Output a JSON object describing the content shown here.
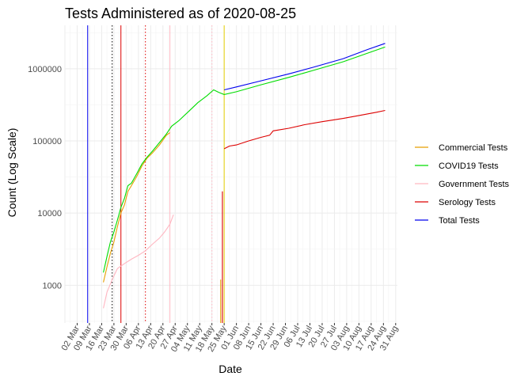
{
  "chart_data": {
    "type": "line",
    "title": "Tests Administered as of 2020-08-25",
    "xlabel": "Date",
    "ylabel": "Count (Log Scale)",
    "y_scale": "log10",
    "ylim": [
      300,
      4000000
    ],
    "xlim": [
      "2020-02-24",
      "2020-09-01"
    ],
    "grid": true,
    "legend_position": "right",
    "x_tick_labels": [
      "02 Mar",
      "09 Mar",
      "16 Mar",
      "23 Mar",
      "30 Mar",
      "06 Apr",
      "13 Apr",
      "20 Apr",
      "27 Apr",
      "04 May",
      "11 May",
      "18 May",
      "25 May",
      "01 Jun",
      "08 Jun",
      "15 Jun",
      "22 Jun",
      "29 Jun",
      "06 Jul",
      "13 Jul",
      "20 Jul",
      "27 Jul",
      "03 Aug",
      "10 Aug",
      "17 Aug",
      "24 Aug",
      "31 Aug"
    ],
    "x_tick_dates": [
      "2020-03-02",
      "2020-03-09",
      "2020-03-16",
      "2020-03-23",
      "2020-03-30",
      "2020-04-06",
      "2020-04-13",
      "2020-04-20",
      "2020-04-27",
      "2020-05-04",
      "2020-05-11",
      "2020-05-18",
      "2020-05-25",
      "2020-06-01",
      "2020-06-08",
      "2020-06-15",
      "2020-06-22",
      "2020-06-29",
      "2020-07-06",
      "2020-07-13",
      "2020-07-20",
      "2020-07-27",
      "2020-08-03",
      "2020-08-10",
      "2020-08-17",
      "2020-08-24",
      "2020-08-31"
    ],
    "y_ticks": [
      1000,
      10000,
      100000,
      1000000
    ],
    "y_tick_labels": [
      "1000",
      "10000",
      "100000",
      "1000000"
    ],
    "series": [
      {
        "name": "Commercial Tests",
        "color": "#E69F00",
        "points": [
          [
            "2020-03-17",
            1100
          ],
          [
            "2020-03-19",
            1800
          ],
          [
            "2020-03-21",
            2800
          ],
          [
            "2020-03-23",
            4000
          ],
          [
            "2020-03-25",
            6500
          ],
          [
            "2020-03-27",
            10000
          ],
          [
            "2020-03-29",
            13000
          ],
          [
            "2020-03-31",
            20000
          ],
          [
            "2020-04-02",
            24000
          ],
          [
            "2020-04-05",
            32000
          ],
          [
            "2020-04-08",
            45000
          ],
          [
            "2020-04-11",
            58000
          ],
          [
            "2020-04-14",
            68000
          ],
          [
            "2020-04-18",
            88000
          ],
          [
            "2020-04-22",
            120000
          ],
          [
            "2020-04-24",
            130000
          ]
        ]
      },
      {
        "name": "COVID19 Tests",
        "color": "#00DD00",
        "points": [
          [
            "2020-03-17",
            1500
          ],
          [
            "2020-03-19",
            2500
          ],
          [
            "2020-03-21",
            4000
          ],
          [
            "2020-03-23",
            5500
          ],
          [
            "2020-03-25",
            8000
          ],
          [
            "2020-03-27",
            12000
          ],
          [
            "2020-03-29",
            16000
          ],
          [
            "2020-03-31",
            24000
          ],
          [
            "2020-04-02",
            26000
          ],
          [
            "2020-04-05",
            35000
          ],
          [
            "2020-04-08",
            48000
          ],
          [
            "2020-04-11",
            60000
          ],
          [
            "2020-04-14",
            72000
          ],
          [
            "2020-04-18",
            95000
          ],
          [
            "2020-04-22",
            125000
          ],
          [
            "2020-04-25",
            160000
          ],
          [
            "2020-04-29",
            190000
          ],
          [
            "2020-05-05",
            260000
          ],
          [
            "2020-05-10",
            340000
          ],
          [
            "2020-05-15",
            420000
          ],
          [
            "2020-05-19",
            510000
          ],
          [
            "2020-05-22",
            470000
          ],
          [
            "2020-05-25",
            440000
          ],
          [
            "2020-06-01",
            480000
          ],
          [
            "2020-06-15",
            600000
          ],
          [
            "2020-07-01",
            760000
          ],
          [
            "2020-07-15",
            950000
          ],
          [
            "2020-08-01",
            1250000
          ],
          [
            "2020-08-15",
            1650000
          ],
          [
            "2020-08-25",
            2000000
          ]
        ]
      },
      {
        "name": "Government Tests",
        "color": "#FFB6C1",
        "points": [
          [
            "2020-03-17",
            480
          ],
          [
            "2020-03-19",
            800
          ],
          [
            "2020-03-22",
            1200
          ],
          [
            "2020-03-25",
            1700
          ],
          [
            "2020-03-29",
            2000
          ],
          [
            "2020-04-02",
            2300
          ],
          [
            "2020-04-06",
            2600
          ],
          [
            "2020-04-10",
            3000
          ],
          [
            "2020-04-14",
            3700
          ],
          [
            "2020-04-18",
            4500
          ],
          [
            "2020-04-21",
            5500
          ],
          [
            "2020-04-24",
            7000
          ],
          [
            "2020-04-26",
            9500
          ]
        ]
      },
      {
        "name": "Serology Tests",
        "color": "#DD0000",
        "points": [
          [
            "2020-05-25",
            78000
          ],
          [
            "2020-05-28",
            85000
          ],
          [
            "2020-06-01",
            88000
          ],
          [
            "2020-06-08",
            100000
          ],
          [
            "2020-06-15",
            112000
          ],
          [
            "2020-06-20",
            120000
          ],
          [
            "2020-06-22",
            138000
          ],
          [
            "2020-07-01",
            150000
          ],
          [
            "2020-07-10",
            168000
          ],
          [
            "2020-07-20",
            185000
          ],
          [
            "2020-08-01",
            205000
          ],
          [
            "2020-08-10",
            225000
          ],
          [
            "2020-08-20",
            250000
          ],
          [
            "2020-08-25",
            265000
          ]
        ]
      },
      {
        "name": "Total Tests",
        "color": "#0000EE",
        "points": [
          [
            "2020-05-25",
            510000
          ],
          [
            "2020-06-01",
            560000
          ],
          [
            "2020-06-15",
            680000
          ],
          [
            "2020-07-01",
            850000
          ],
          [
            "2020-07-15",
            1050000
          ],
          [
            "2020-08-01",
            1380000
          ],
          [
            "2020-08-15",
            1850000
          ],
          [
            "2020-08-25",
            2250000
          ]
        ]
      }
    ],
    "reference_lines": [
      {
        "date": "2020-03-08",
        "color": "#0000EE",
        "style": "solid"
      },
      {
        "date": "2020-03-22",
        "color": "#000000",
        "style": "dotted"
      },
      {
        "date": "2020-03-27",
        "color": "#DD0000",
        "style": "solid"
      },
      {
        "date": "2020-04-10",
        "color": "#DD0000",
        "style": "dotted"
      },
      {
        "date": "2020-04-24",
        "color": "#FFB6C1",
        "style": "solid"
      },
      {
        "date": "2020-05-18",
        "color": "#FFB6C1",
        "style": "dotted"
      },
      {
        "date": "2020-05-25",
        "color": "#E6D000",
        "style": "solid"
      }
    ],
    "spikes": [
      {
        "date": "2020-05-24",
        "color": "#DD0000",
        "from": 300,
        "to": 20000
      },
      {
        "date": "2020-05-23",
        "color": "#E69F00",
        "from": 300,
        "to": 1200
      }
    ]
  }
}
